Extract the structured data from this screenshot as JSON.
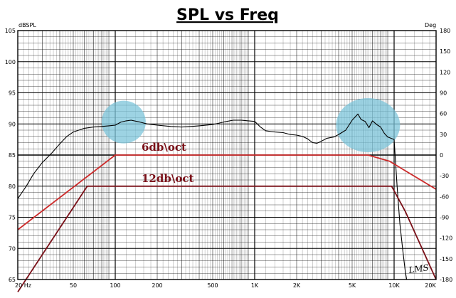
{
  "chart_data": {
    "type": "line",
    "title": "SPL vs Freq",
    "ylabel_left": "dBSPL",
    "ylabel_right": "Deg",
    "x_scale": "log",
    "xlim": [
      20,
      20000
    ],
    "ylim": [
      65,
      105
    ],
    "ylim_right": [
      -180,
      180
    ],
    "grid": true,
    "x_tick_labels": [
      {
        "value": 20,
        "label": "20 Hz"
      },
      {
        "value": 50,
        "label": "50"
      },
      {
        "value": 100,
        "label": "100"
      },
      {
        "value": 200,
        "label": "200"
      },
      {
        "value": 500,
        "label": "500"
      },
      {
        "value": 1000,
        "label": "1K"
      },
      {
        "value": 2000,
        "label": "2K"
      },
      {
        "value": 5000,
        "label": "5K"
      },
      {
        "value": 10000,
        "label": "10K"
      },
      {
        "value": 20000,
        "label": "20K"
      }
    ],
    "y_ticks_left": [
      65,
      70,
      75,
      80,
      85,
      90,
      95,
      100,
      105
    ],
    "y_ticks_right": [
      180,
      150,
      120,
      90,
      60,
      30,
      0,
      -30,
      -60,
      -90,
      -120,
      -150,
      -180
    ],
    "series": [
      {
        "color": "#000000",
        "points": [
          [
            20,
            78.0
          ],
          [
            23,
            80.0
          ],
          [
            26,
            82.0
          ],
          [
            30,
            83.8
          ],
          [
            35,
            85.3
          ],
          [
            40,
            86.8
          ],
          [
            45,
            88.0
          ],
          [
            50,
            88.7
          ],
          [
            60,
            89.3
          ],
          [
            70,
            89.5
          ],
          [
            80,
            89.6
          ],
          [
            90,
            89.7
          ],
          [
            100,
            89.8
          ],
          [
            110,
            90.3
          ],
          [
            120,
            90.5
          ],
          [
            130,
            90.6
          ],
          [
            150,
            90.3
          ],
          [
            170,
            90.0
          ],
          [
            200,
            89.8
          ],
          [
            250,
            89.6
          ],
          [
            300,
            89.5
          ],
          [
            350,
            89.6
          ],
          [
            400,
            89.7
          ],
          [
            500,
            89.9
          ],
          [
            600,
            90.3
          ],
          [
            700,
            90.6
          ],
          [
            800,
            90.6
          ],
          [
            900,
            90.5
          ],
          [
            1000,
            90.4
          ],
          [
            1100,
            89.5
          ],
          [
            1200,
            88.9
          ],
          [
            1400,
            88.7
          ],
          [
            1600,
            88.6
          ],
          [
            1800,
            88.3
          ],
          [
            2000,
            88.2
          ],
          [
            2200,
            88.0
          ],
          [
            2400,
            87.6
          ],
          [
            2600,
            87.0
          ],
          [
            2800,
            86.9
          ],
          [
            3000,
            87.2
          ],
          [
            3300,
            87.7
          ],
          [
            3700,
            87.9
          ],
          [
            4000,
            88.3
          ],
          [
            4500,
            89.0
          ],
          [
            5000,
            90.6
          ],
          [
            5500,
            91.6
          ],
          [
            5800,
            90.7
          ],
          [
            6200,
            90.4
          ],
          [
            6600,
            89.4
          ],
          [
            7000,
            90.5
          ],
          [
            7500,
            89.9
          ],
          [
            8000,
            89.5
          ],
          [
            8500,
            88.5
          ],
          [
            9000,
            87.9
          ],
          [
            9500,
            87.7
          ],
          [
            10000,
            87.5
          ],
          [
            10500,
            80.0
          ],
          [
            11000,
            74.0
          ],
          [
            11500,
            70.0
          ],
          [
            12000,
            66.5
          ],
          [
            12300,
            65.0
          ]
        ]
      },
      {
        "name": "6db\\oct",
        "color": "#cc2a2a",
        "points": [
          [
            20,
            73.0
          ],
          [
            100,
            85.0
          ],
          [
            6500,
            85.0
          ],
          [
            9300,
            84.0
          ],
          [
            11000,
            83.0
          ],
          [
            20000,
            79.5
          ]
        ]
      },
      {
        "name": "12db\\oct",
        "color": "#7a1018",
        "points": [
          [
            20,
            63.0
          ],
          [
            63,
            80.0
          ],
          [
            9600,
            80.0
          ],
          [
            12000,
            76.0
          ],
          [
            20000,
            65.0
          ]
        ]
      }
    ],
    "highlights": [
      {
        "x": 115,
        "y": 90.3,
        "color": "#7cc4d9"
      },
      {
        "x": 6500,
        "y": 89.8,
        "color": "#7cc4d9"
      }
    ],
    "signature": "LMS"
  }
}
